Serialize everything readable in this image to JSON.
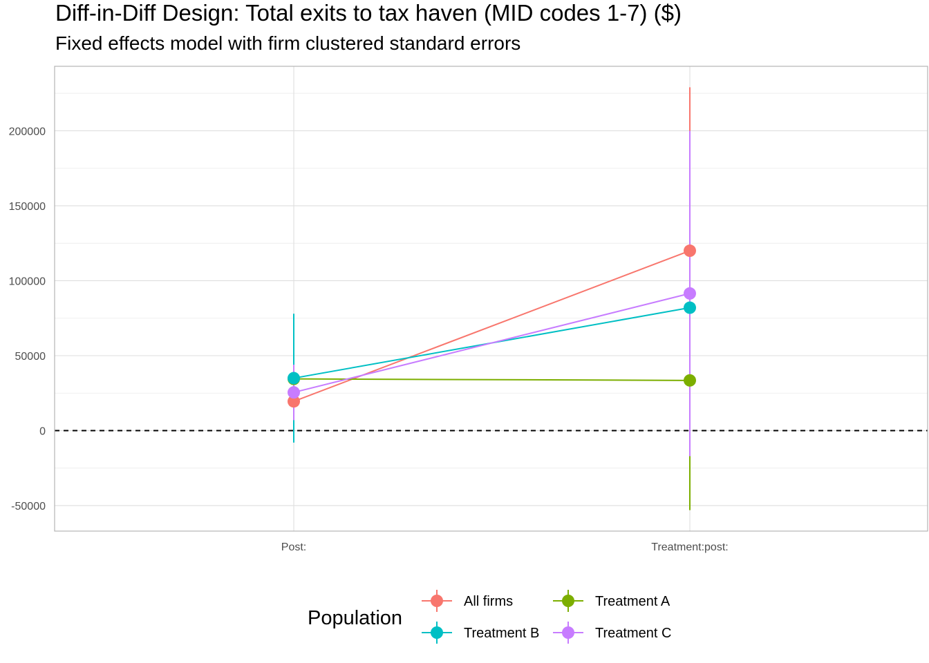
{
  "chart_data": {
    "type": "scatter",
    "title": "Diff-in-Diff Design: Total exits to tax haven (MID codes 1-7)  ($)",
    "subtitle": "Fixed effects model with firm clustered standard errors",
    "xlabel": "",
    "ylabel": "",
    "categories": [
      "Post:",
      "Treatment:post:"
    ],
    "ylim": [
      -67000,
      243000
    ],
    "yticks": [
      -50000,
      0,
      50000,
      100000,
      150000,
      200000
    ],
    "ytick_labels": [
      "-50000",
      "0",
      "50000",
      "100000",
      "150000",
      "200000"
    ],
    "reference_line": 0,
    "grid": true,
    "legend": {
      "title": "Population",
      "position": "bottom"
    },
    "series": [
      {
        "name": "All firms",
        "color": "#F8766D",
        "values": [
          19500,
          120000
        ],
        "ci_low": [
          5000,
          10000
        ],
        "ci_high": [
          34000,
          229000
        ]
      },
      {
        "name": "Treatment A",
        "color": "#7CAE00",
        "values": [
          34500,
          33500
        ],
        "ci_low": [
          21000,
          -53000
        ],
        "ci_high": [
          48000,
          120000
        ]
      },
      {
        "name": "Treatment B",
        "color": "#00BFC4",
        "values": [
          35000,
          82000
        ],
        "ci_low": [
          -8000,
          -17000
        ],
        "ci_high": [
          78000,
          181000
        ]
      },
      {
        "name": "Treatment C",
        "color": "#C77CFF",
        "values": [
          25500,
          91500
        ],
        "ci_low": [
          7000,
          -17000
        ],
        "ci_high": [
          44000,
          200000
        ]
      }
    ]
  }
}
